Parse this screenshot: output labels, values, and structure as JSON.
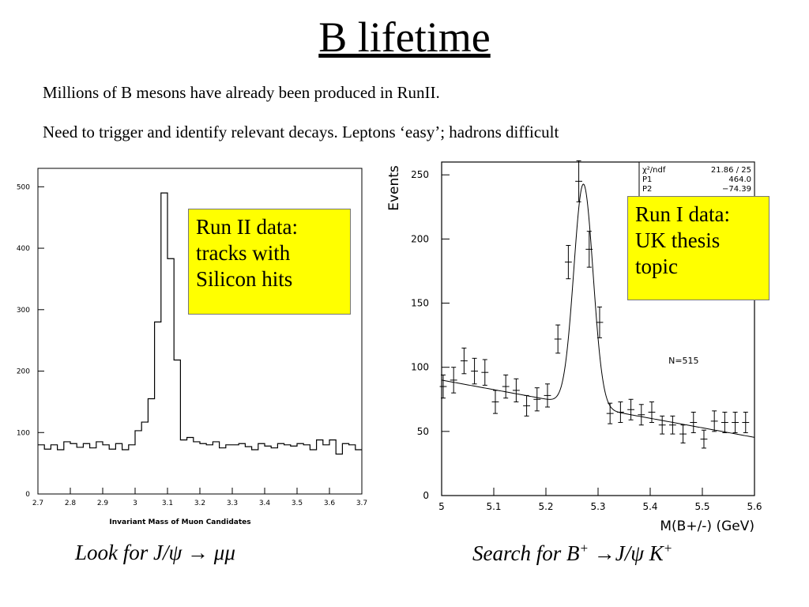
{
  "slide": {
    "title": "B lifetime",
    "line1": "Millions of B mesons have already been produced in RunII.",
    "line2": "Need to trigger and identify relevant decays.  Leptons ‘easy’; hadrons difficult",
    "note_left": [
      "Run II data:",
      "tracks with",
      "Silicon hits"
    ],
    "note_right": [
      "Run I data:",
      "UK thesis",
      "topic"
    ],
    "caption_left": {
      "text": "Look for J/ψ → μμ"
    },
    "caption_right": {
      "pre": "Search for B",
      "sup1": "+",
      "mid": " →J/ψ K",
      "sup2": "+"
    },
    "note_color": "#ffff00"
  },
  "chart_data": [
    {
      "type": "histogram",
      "xlabel": "Invariant Mass of Muon Candidates",
      "ylabel": "",
      "xlim": [
        2.7,
        3.7
      ],
      "ylim": [
        0,
        530
      ],
      "xticks": [
        "2.7",
        "2.8",
        "2.9",
        "3",
        "3.1",
        "3.2",
        "3.3",
        "3.4",
        "3.5",
        "3.6",
        "3.7"
      ],
      "yticks": [
        0,
        100,
        200,
        300,
        400,
        500
      ],
      "bin_edges": [
        2.7,
        2.72,
        2.74,
        2.76,
        2.78,
        2.8,
        2.82,
        2.84,
        2.86,
        2.88,
        2.9,
        2.92,
        2.94,
        2.96,
        2.98,
        3.0,
        3.02,
        3.04,
        3.06,
        3.08,
        3.1,
        3.12,
        3.14,
        3.16,
        3.18,
        3.2,
        3.22,
        3.24,
        3.26,
        3.28,
        3.3,
        3.32,
        3.34,
        3.36,
        3.38,
        3.4,
        3.42,
        3.44,
        3.46,
        3.48,
        3.5,
        3.52,
        3.54,
        3.56,
        3.58,
        3.6,
        3.62,
        3.64,
        3.66,
        3.68,
        3.7
      ],
      "counts": [
        80,
        73,
        80,
        72,
        85,
        82,
        76,
        82,
        75,
        85,
        80,
        73,
        82,
        72,
        80,
        103,
        117,
        155,
        280,
        490,
        383,
        218,
        88,
        92,
        85,
        82,
        80,
        85,
        75,
        80,
        80,
        82,
        77,
        72,
        82,
        78,
        75,
        82,
        80,
        78,
        82,
        80,
        72,
        88,
        80,
        88,
        65,
        82,
        80,
        72
      ]
    },
    {
      "type": "scatter",
      "xlabel": "M(B+/-)  (GeV)",
      "ylabel": "Events",
      "xlim": [
        5.0,
        5.6
      ],
      "ylim": [
        0,
        260
      ],
      "xticks": [
        "5",
        "5.1",
        "5.2",
        "5.3",
        "5.4",
        "5.5",
        "5.6"
      ],
      "yticks": [
        0,
        50,
        100,
        150,
        200,
        250
      ],
      "stats": [
        {
          "label": "χ²/ndf",
          "value": "21.86  /  25"
        },
        {
          "label": "P1",
          "value": "464.0"
        },
        {
          "label": "P2",
          "value": "−74.39"
        }
      ],
      "annotation": "N=515",
      "x_error": 0.0067,
      "points": [
        {
          "x": 5.003,
          "y": 85,
          "err": 9
        },
        {
          "x": 5.023,
          "y": 90,
          "err": 10
        },
        {
          "x": 5.043,
          "y": 105,
          "err": 10
        },
        {
          "x": 5.063,
          "y": 97,
          "err": 10
        },
        {
          "x": 5.083,
          "y": 96,
          "err": 10
        },
        {
          "x": 5.103,
          "y": 73,
          "err": 9
        },
        {
          "x": 5.123,
          "y": 85,
          "err": 9
        },
        {
          "x": 5.143,
          "y": 82,
          "err": 9
        },
        {
          "x": 5.163,
          "y": 70,
          "err": 8
        },
        {
          "x": 5.183,
          "y": 75,
          "err": 9
        },
        {
          "x": 5.203,
          "y": 78,
          "err": 9
        },
        {
          "x": 5.223,
          "y": 122,
          "err": 11
        },
        {
          "x": 5.243,
          "y": 182,
          "err": 13
        },
        {
          "x": 5.263,
          "y": 245,
          "err": 16
        },
        {
          "x": 5.283,
          "y": 192,
          "err": 14
        },
        {
          "x": 5.303,
          "y": 135,
          "err": 12
        },
        {
          "x": 5.323,
          "y": 64,
          "err": 8
        },
        {
          "x": 5.343,
          "y": 65,
          "err": 8
        },
        {
          "x": 5.363,
          "y": 67,
          "err": 8
        },
        {
          "x": 5.383,
          "y": 63,
          "err": 8
        },
        {
          "x": 5.403,
          "y": 65,
          "err": 8
        },
        {
          "x": 5.423,
          "y": 55,
          "err": 7
        },
        {
          "x": 5.443,
          "y": 55,
          "err": 7
        },
        {
          "x": 5.463,
          "y": 48,
          "err": 7
        },
        {
          "x": 5.483,
          "y": 57,
          "err": 8
        },
        {
          "x": 5.503,
          "y": 44,
          "err": 7
        },
        {
          "x": 5.523,
          "y": 58,
          "err": 8
        },
        {
          "x": 5.543,
          "y": 57,
          "err": 8
        },
        {
          "x": 5.563,
          "y": 57,
          "err": 8
        },
        {
          "x": 5.583,
          "y": 57,
          "err": 8
        }
      ],
      "fit": {
        "background": {
          "intercept_at_x0": 90,
          "slope_per_gev": -74.39,
          "x0": 5.0
        },
        "gaussian": {
          "mean": 5.272,
          "sigma": 0.0185,
          "amplitude": 173
        }
      }
    }
  ]
}
